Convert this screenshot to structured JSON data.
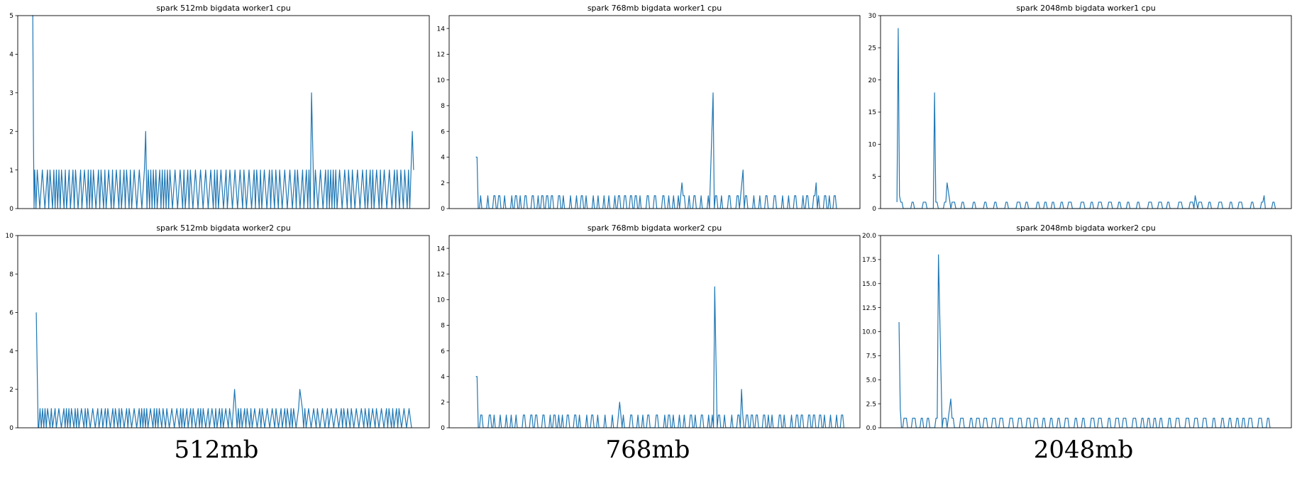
{
  "figure": {
    "captions": [
      "512mb",
      "768mb",
      "2048mb"
    ],
    "line_color": "#1f77b4"
  },
  "chart_data": [
    {
      "type": "line",
      "title": "spark 512mb bigdata worker1 cpu",
      "ylim": [
        0,
        5
      ],
      "yticks": [
        0,
        1,
        2,
        3,
        4,
        5
      ],
      "ytick_labels": [
        "0",
        "1",
        "2",
        "3",
        "4",
        "5"
      ],
      "x_range": [
        0,
        300
      ],
      "pattern": {
        "kind": "toggle",
        "start": 1,
        "end": 300,
        "dur": [
          1,
          2
        ],
        "gap": [
          1,
          2
        ],
        "base": 1
      },
      "events": [
        [
          0,
          5
        ],
        [
          0.5,
          5
        ],
        [
          1,
          2
        ],
        [
          1.5,
          0
        ],
        [
          89,
          2
        ],
        [
          219,
          3
        ],
        [
          298,
          2
        ]
      ]
    },
    {
      "type": "line",
      "title": "spark 768mb bigdata worker1 cpu",
      "ylim": [
        0,
        15
      ],
      "yticks": [
        0,
        2,
        4,
        6,
        8,
        10,
        12,
        14
      ],
      "ytick_labels": [
        "0",
        "2",
        "4",
        "6",
        "8",
        "10",
        "12",
        "14"
      ],
      "x_range": [
        0,
        300
      ],
      "pattern": {
        "kind": "bumps",
        "start": 3,
        "end": 300,
        "dur": [
          2,
          3
        ],
        "gap": [
          1,
          4
        ],
        "base": 1
      },
      "events": [
        [
          0,
          4
        ],
        [
          1,
          4
        ],
        [
          2,
          0
        ],
        [
          172,
          2
        ],
        [
          198,
          9
        ],
        [
          223,
          3
        ],
        [
          284,
          2
        ]
      ]
    },
    {
      "type": "line",
      "title": "spark 2048mb bigdata worker1 cpu",
      "ylim": [
        0,
        30
      ],
      "yticks": [
        0,
        5,
        10,
        15,
        20,
        25,
        30
      ],
      "ytick_labels": [
        "0",
        "5",
        "10",
        "15",
        "20",
        "25",
        "30"
      ],
      "x_range": [
        0,
        300
      ],
      "pattern": {
        "kind": "bumps",
        "start": 2,
        "end": 300,
        "dur": [
          3,
          4
        ],
        "gap": [
          3,
          6
        ],
        "base": 1
      },
      "events": [
        [
          0,
          1
        ],
        [
          1,
          28
        ],
        [
          2,
          2
        ],
        [
          5,
          0
        ],
        [
          30,
          18
        ],
        [
          40,
          4
        ],
        [
          238,
          2
        ],
        [
          293,
          2
        ]
      ]
    },
    {
      "type": "line",
      "title": "spark 512mb bigdata worker2 cpu",
      "ylim": [
        0,
        10
      ],
      "yticks": [
        0,
        2,
        4,
        6,
        8,
        10
      ],
      "ytick_labels": [
        "0",
        "2",
        "4",
        "6",
        "8",
        "10"
      ],
      "x_range": [
        0,
        300
      ],
      "pattern": {
        "kind": "toggle",
        "start": 2,
        "end": 300,
        "dur": [
          1,
          2
        ],
        "gap": [
          1,
          2
        ],
        "base": 1
      },
      "events": [
        [
          0,
          6
        ],
        [
          1,
          2
        ],
        [
          1.5,
          0
        ],
        [
          158,
          2
        ],
        [
          210,
          2
        ]
      ]
    },
    {
      "type": "line",
      "title": "spark 768mb bigdata worker2 cpu",
      "ylim": [
        0,
        15
      ],
      "yticks": [
        0,
        2,
        4,
        6,
        8,
        10,
        12,
        14
      ],
      "ytick_labels": [
        "0",
        "2",
        "4",
        "6",
        "8",
        "10",
        "12",
        "14"
      ],
      "x_range": [
        0,
        300
      ],
      "pattern": {
        "kind": "bumps",
        "start": 3,
        "end": 300,
        "dur": [
          2,
          3
        ],
        "gap": [
          1,
          4
        ],
        "base": 1
      },
      "events": [
        [
          0,
          4
        ],
        [
          1,
          4
        ],
        [
          2,
          0
        ],
        [
          118,
          2
        ],
        [
          196,
          11
        ],
        [
          218,
          3
        ]
      ]
    },
    {
      "type": "line",
      "title": "spark 2048mb bigdata worker2 cpu",
      "ylim": [
        0,
        20
      ],
      "yticks": [
        0,
        2.5,
        5,
        7.5,
        10,
        12.5,
        15,
        17.5,
        20
      ],
      "ytick_labels": [
        "0.0",
        "2.5",
        "5.0",
        "7.5",
        "10.0",
        "12.5",
        "15.0",
        "17.5",
        "20.0"
      ],
      "x_range": [
        0,
        300
      ],
      "pattern": {
        "kind": "bumps",
        "start": 3,
        "end": 300,
        "dur": [
          3,
          4
        ],
        "gap": [
          2,
          4
        ],
        "base": 1
      },
      "events": [
        [
          0,
          11
        ],
        [
          1,
          2
        ],
        [
          2,
          0
        ],
        [
          32,
          18
        ],
        [
          42,
          3
        ]
      ]
    }
  ]
}
